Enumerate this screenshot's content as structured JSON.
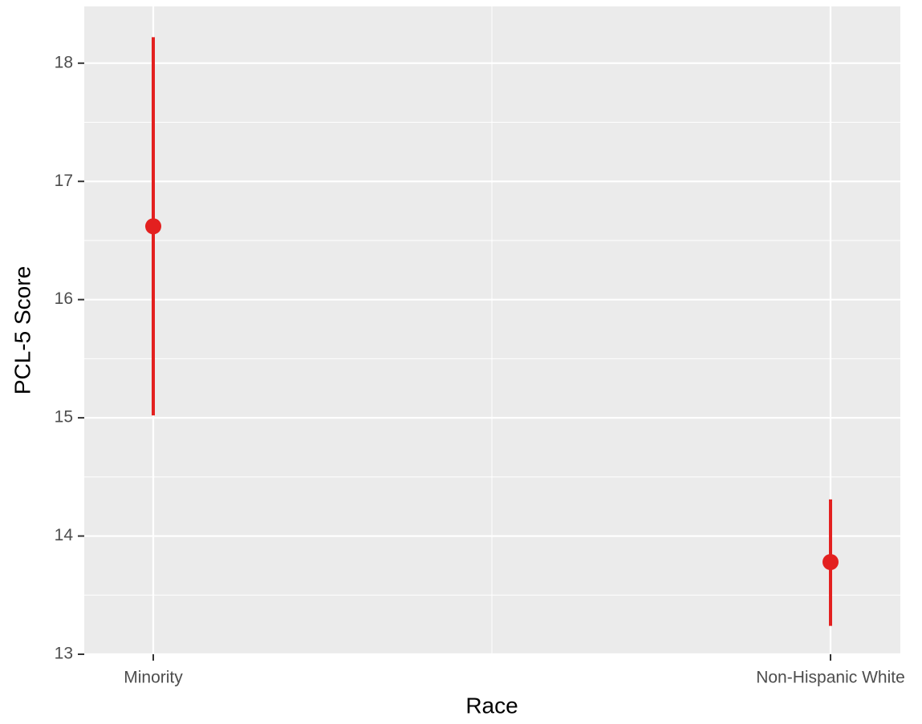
{
  "chart_data": {
    "type": "pointrange",
    "x_label": "Race",
    "y_label": "PCL-5 Score",
    "categories": [
      "Minority",
      "Non-Hispanic White"
    ],
    "series": [
      {
        "color": "#e3201f",
        "values": [
          16.62,
          13.78
        ],
        "lower": [
          15.02,
          13.24
        ],
        "upper": [
          18.22,
          14.31
        ]
      }
    ],
    "ylim": [
      13,
      18.48
    ],
    "yticks": [
      13,
      14,
      15,
      16,
      17,
      18
    ],
    "grid": true
  }
}
